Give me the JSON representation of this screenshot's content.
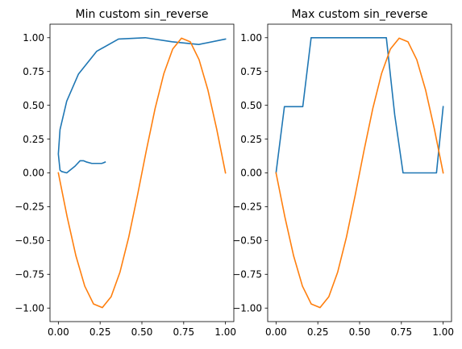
{
  "chart_data": [
    {
      "type": "line",
      "title": "Min custom sin_reverse",
      "xlim": [
        -0.05,
        1.05
      ],
      "ylim": [
        -1.1,
        1.1
      ],
      "xticks": [
        0.0,
        0.25,
        0.5,
        0.75,
        1.0
      ],
      "xtick_labels": [
        "0.00",
        "0.25",
        "0.50",
        "0.75",
        "1.00"
      ],
      "yticks": [
        1.0,
        0.75,
        0.5,
        0.25,
        0.0,
        -0.25,
        -0.5,
        -0.75,
        -1.0
      ],
      "ytick_labels": [
        "1.00",
        "0.75",
        "0.50",
        "0.25",
        "0.00",
        "−0.25",
        "−0.50",
        "−0.75",
        "−1.00"
      ],
      "grid": false,
      "series": [
        {
          "color": "#1f77b4",
          "x": [
            0.28,
            0.26,
            0.23,
            0.2,
            0.17,
            0.15,
            0.13,
            0.1,
            0.05,
            0.02,
            0.01,
            0.0,
            0.01,
            0.05,
            0.12,
            0.23,
            0.36,
            0.52,
            0.68,
            0.84,
            1.0
          ],
          "y": [
            0.08,
            0.07,
            0.07,
            0.07,
            0.08,
            0.09,
            0.09,
            0.05,
            0.0,
            0.01,
            0.02,
            0.14,
            0.32,
            0.53,
            0.73,
            0.9,
            0.99,
            1.0,
            0.97,
            0.95,
            0.99
          ]
        },
        {
          "color": "#ff7f0e",
          "x": [
            0.0,
            0.0526,
            0.1053,
            0.1579,
            0.2105,
            0.2632,
            0.3158,
            0.3684,
            0.4211,
            0.4737,
            0.5263,
            0.5789,
            0.6316,
            0.6842,
            0.7368,
            0.7895,
            0.8421,
            0.8947,
            0.9474,
            1.0
          ],
          "y": [
            0.0,
            -0.3247,
            -0.6142,
            -0.8372,
            -0.9694,
            -0.9966,
            -0.9158,
            -0.7357,
            -0.4759,
            -0.1646,
            0.1646,
            0.4759,
            0.7357,
            0.9158,
            0.9966,
            0.9694,
            0.8372,
            0.6142,
            0.3247,
            0.0
          ]
        }
      ]
    },
    {
      "type": "line",
      "title": "Max custom sin_reverse",
      "xlim": [
        -0.05,
        1.05
      ],
      "ylim": [
        -1.1,
        1.1
      ],
      "xticks": [
        0.0,
        0.25,
        0.5,
        0.75,
        1.0
      ],
      "xtick_labels": [
        "0.00",
        "0.25",
        "0.50",
        "0.75",
        "1.00"
      ],
      "yticks": [
        1.0,
        0.75,
        0.5,
        0.25,
        0.0,
        -0.25,
        -0.5,
        -0.75,
        -1.0
      ],
      "ytick_labels": [
        "1.00",
        "0.75",
        "0.50",
        "0.25",
        "0.00",
        "−0.25",
        "−0.50",
        "−0.75",
        "−1.00"
      ],
      "grid": false,
      "series": [
        {
          "color": "#1f77b4",
          "x": [
            0.0,
            0.05,
            0.16,
            0.21,
            0.66,
            0.71,
            0.76,
            0.96,
            1.0
          ],
          "y": [
            0.0,
            0.49,
            0.49,
            1.0,
            1.0,
            0.43,
            0.0,
            0.0,
            0.49
          ]
        },
        {
          "color": "#ff7f0e",
          "x": [
            0.0,
            0.0526,
            0.1053,
            0.1579,
            0.2105,
            0.2632,
            0.3158,
            0.3684,
            0.4211,
            0.4737,
            0.5263,
            0.5789,
            0.6316,
            0.6842,
            0.7368,
            0.7895,
            0.8421,
            0.8947,
            0.9474,
            1.0
          ],
          "y": [
            0.0,
            -0.3247,
            -0.6142,
            -0.8372,
            -0.9694,
            -0.9966,
            -0.9158,
            -0.7357,
            -0.4759,
            -0.1646,
            0.1646,
            0.4759,
            0.7357,
            0.9158,
            0.9966,
            0.9694,
            0.8372,
            0.6142,
            0.3247,
            0.0
          ]
        }
      ]
    }
  ]
}
